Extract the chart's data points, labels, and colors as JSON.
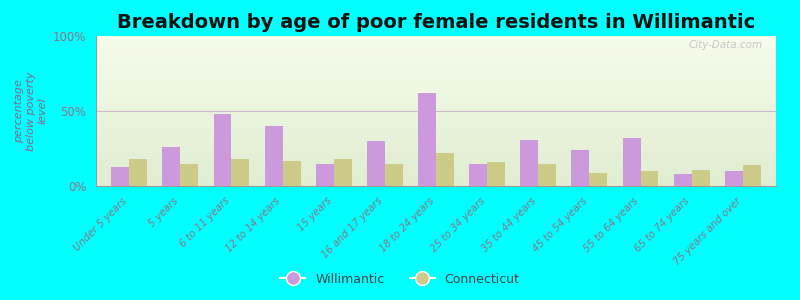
{
  "title": "Breakdown by age of poor female residents in Willimantic",
  "ylabel": "percentage\nbelow poverty\nlevel",
  "background_color": "#00ffff",
  "categories": [
    "Under 5 years",
    "5 years",
    "6 to 11 years",
    "12 to 14 years",
    "15 years",
    "16 and 17 years",
    "18 to 24 years",
    "25 to 34 years",
    "35 to 44 years",
    "45 to 54 years",
    "55 to 64 years",
    "65 to 74 years",
    "75 years and over"
  ],
  "willimantic": [
    13,
    26,
    48,
    40,
    15,
    30,
    62,
    15,
    31,
    24,
    32,
    8,
    10
  ],
  "connecticut": [
    18,
    15,
    18,
    17,
    18,
    15,
    22,
    16,
    15,
    9,
    10,
    11,
    14
  ],
  "willimantic_color": "#cc99dd",
  "connecticut_color": "#cccc88",
  "ylim": [
    0,
    100
  ],
  "ytick_labels": [
    "0%",
    "50%",
    "100%"
  ],
  "ytick_values": [
    0,
    50,
    100
  ],
  "legend_labels": [
    "Willimantic",
    "Connecticut"
  ],
  "title_fontsize": 14,
  "watermark": "City-Data.com",
  "label_color": "#886688",
  "tick_color": "#887788",
  "plot_bg_colors": [
    "#f8fff0",
    "#e8f5d8"
  ],
  "grid_color": "#ddddcc",
  "bar_width": 0.35
}
